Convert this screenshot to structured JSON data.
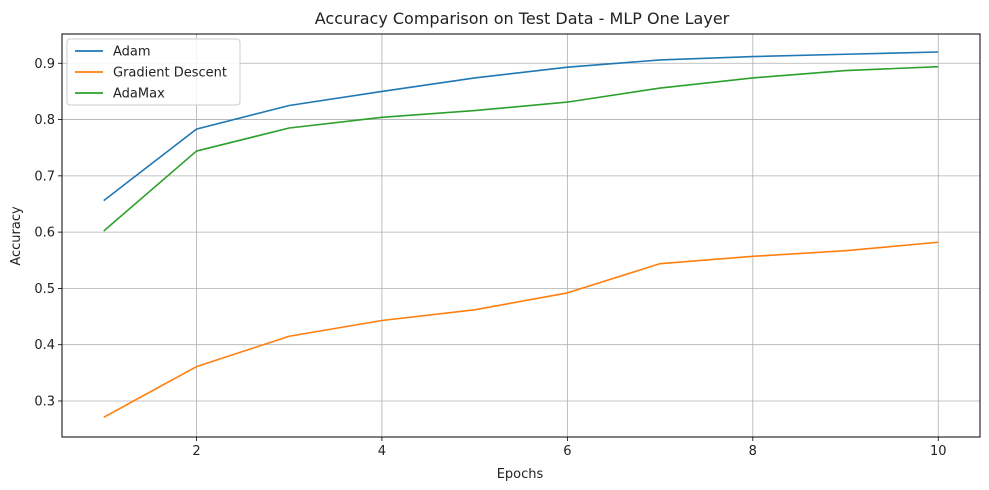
{
  "chart_data": {
    "type": "line",
    "title": "Accuracy Comparison on Test Data - MLP One Layer",
    "xlabel": "Epochs",
    "ylabel": "Accuracy",
    "x": [
      1,
      2,
      3,
      4,
      5,
      6,
      7,
      8,
      9,
      10
    ],
    "xticks": [
      2,
      4,
      6,
      8,
      10
    ],
    "yticks": [
      0.3,
      0.4,
      0.5,
      0.6,
      0.7,
      0.8,
      0.9
    ],
    "xlim": [
      0.55,
      10.45
    ],
    "ylim": [
      0.236,
      0.952
    ],
    "grid": true,
    "legend_position": "top-left",
    "series": [
      {
        "name": "Adam",
        "color": "#1f77b4",
        "values": [
          0.656,
          0.783,
          0.825,
          0.85,
          0.874,
          0.893,
          0.906,
          0.912,
          0.916,
          0.92
        ]
      },
      {
        "name": "Gradient Descent",
        "color": "#ff7f0e",
        "values": [
          0.271,
          0.361,
          0.415,
          0.443,
          0.462,
          0.492,
          0.544,
          0.557,
          0.567,
          0.582
        ]
      },
      {
        "name": "AdaMax",
        "color": "#2ca02c",
        "values": [
          0.602,
          0.744,
          0.785,
          0.804,
          0.816,
          0.831,
          0.856,
          0.874,
          0.887,
          0.894
        ]
      }
    ]
  }
}
